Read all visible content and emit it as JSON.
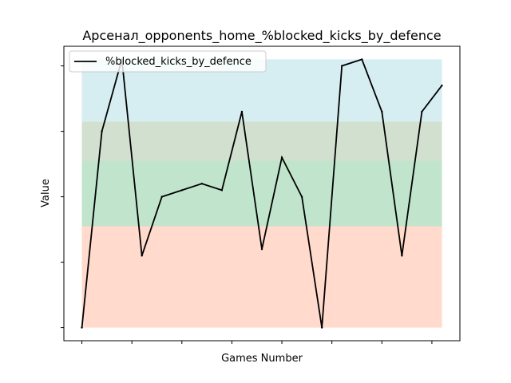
{
  "chart_data": {
    "type": "line",
    "title": "Арсенал_opponents_home_%blocked_kicks_by_defence",
    "xlabel": "Games Number",
    "ylabel": "Value",
    "x": [
      0,
      1,
      2,
      3,
      4,
      5,
      6,
      7,
      8,
      9,
      10,
      11,
      12,
      13,
      14,
      15,
      16,
      17,
      18
    ],
    "series": [
      {
        "name": "%blocked_kicks_by_defence",
        "values": [
          0.0,
          0.6,
          0.82,
          0.22,
          0.4,
          0.42,
          0.44,
          0.42,
          0.66,
          0.24,
          0.52,
          0.4,
          0.0,
          0.8,
          0.82,
          0.66,
          0.22,
          0.66,
          0.74
        ],
        "color": "#000000"
      }
    ],
    "xlim": [
      -0.9,
      18.9
    ],
    "ylim": [
      -0.04,
      0.86
    ],
    "legend_position": "top-left",
    "grid": false,
    "x_tick_labels_visible": false,
    "y_tick_labels_visible": false,
    "bands": [
      {
        "from": 0.0,
        "to": 0.31,
        "color": "#ffdacd"
      },
      {
        "from": 0.31,
        "to": 0.51,
        "color": "#c0e4cc"
      },
      {
        "from": 0.51,
        "to": 0.63,
        "color": "#d2e0cf"
      },
      {
        "from": 0.63,
        "to": 0.82,
        "color": "#d6edf1"
      }
    ]
  }
}
